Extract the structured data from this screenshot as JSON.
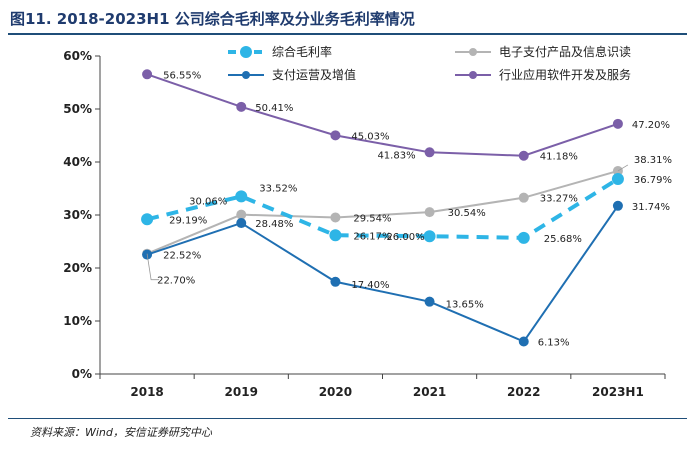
{
  "figure": {
    "title": "图11. 2018-2023H1 公司综合毛利率及分业务毛利率情况",
    "source": "资料来源：Wind，安信证券研究中心"
  },
  "chart_data": {
    "type": "line",
    "categories": [
      "2018",
      "2019",
      "2020",
      "2021",
      "2022",
      "2023H1"
    ],
    "ylim": [
      0,
      60
    ],
    "yticks": [
      "0%",
      "10%",
      "20%",
      "30%",
      "40%",
      "50%",
      "60%"
    ],
    "ytick_values": [
      0,
      10,
      20,
      30,
      40,
      50,
      60
    ],
    "grid": false,
    "legend_position": "top",
    "series": [
      {
        "name": "综合毛利率",
        "color": "#2eb5e6",
        "dashed": true,
        "values": [
          29.19,
          33.52,
          26.17,
          26.0,
          25.68,
          36.79
        ],
        "labels": [
          "29.19%",
          "33.52%",
          "26.17%",
          "26.00%",
          "25.68%",
          "36.79%"
        ]
      },
      {
        "name": "电子支付产品及信息识读",
        "color": "#b4b4b4",
        "dashed": false,
        "values": [
          22.7,
          30.06,
          29.54,
          30.54,
          33.27,
          38.31
        ],
        "labels": [
          "22.70%",
          "30.06%",
          "29.54%",
          "30.54%",
          "33.27%",
          "38.31%"
        ]
      },
      {
        "name": "支付运营及增值",
        "color": "#1f6fb2",
        "dashed": false,
        "values": [
          22.52,
          28.48,
          17.4,
          13.65,
          6.13,
          31.74
        ],
        "labels": [
          "22.52%",
          "28.48%",
          "17.40%",
          "13.65%",
          "6.13%",
          "31.74%"
        ]
      },
      {
        "name": "行业应用软件开发及服务",
        "color": "#7b5fa8",
        "dashed": false,
        "values": [
          56.55,
          50.41,
          45.03,
          41.83,
          41.18,
          47.2
        ],
        "labels": [
          "56.55%",
          "50.41%",
          "45.03%",
          "41.83%",
          "41.18%",
          "47.20%"
        ]
      }
    ]
  }
}
